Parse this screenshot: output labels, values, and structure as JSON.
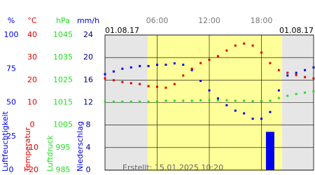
{
  "chart_data": {
    "type": "line",
    "dates": [
      "01.08.17",
      "01.08.17"
    ],
    "footer": "Erstellt: 15.01.2025 10:20",
    "x": [
      0,
      1,
      2,
      3,
      4,
      5,
      6,
      7,
      8,
      9,
      10,
      11,
      12,
      13,
      14,
      15,
      16,
      17,
      18,
      19,
      20,
      21,
      22,
      23,
      24
    ],
    "xlim": [
      0,
      24
    ],
    "xticks": [
      {
        "value": 6,
        "label": "06:00"
      },
      {
        "value": 12,
        "label": "12:00"
      },
      {
        "value": 18,
        "label": "18:00"
      }
    ],
    "grid": true,
    "series": [
      {
        "name": "Luftfeuchtigkeit",
        "unit": "%",
        "color": "#0000ee",
        "style": "dots",
        "ylim": [
          0,
          100
        ],
        "yticks": [
          100,
          75,
          50,
          25,
          0
        ],
        "values": [
          71,
          73,
          75,
          76,
          77,
          77,
          78,
          78,
          79,
          78,
          74,
          66,
          59,
          53,
          48,
          44,
          42,
          38,
          38,
          43,
          59,
          70,
          72,
          74,
          76
        ]
      },
      {
        "name": "Temperatur",
        "unit": "°C",
        "color": "#dd0000",
        "style": "dots",
        "ylim": [
          -20,
          40
        ],
        "yticks": [
          40,
          30,
          20,
          10,
          0,
          -10,
          -20
        ],
        "values": [
          20.7,
          19.9,
          19.1,
          18.6,
          18.2,
          17.3,
          17,
          16.6,
          18.2,
          22,
          25,
          27.5,
          29,
          30.6,
          33.1,
          35.3,
          36.2,
          35.3,
          32.2,
          27.5,
          24.4,
          23.2,
          22.2,
          21.3,
          20.7
        ]
      },
      {
        "name": "Luftdruck",
        "unit": "hPa",
        "color": "#22dd22",
        "style": "dots",
        "ylim": [
          985,
          1045
        ],
        "yticks": [
          1045,
          1035,
          1025,
          1015,
          1005,
          995,
          985
        ],
        "values": [
          1015.4,
          1015.4,
          1015.4,
          1015.4,
          1015.4,
          1015.4,
          1015.4,
          1015.8,
          1015.8,
          1015.8,
          1015.8,
          1016,
          1016,
          1016,
          1016,
          1015.8,
          1015.8,
          1015.6,
          1015.6,
          1015.8,
          1017,
          1018,
          1018.8,
          1019.4,
          1020
        ]
      },
      {
        "name": "Niederschlag",
        "unit": "mm/h",
        "color": "#0000ee",
        "label_color": "#000080",
        "style": "bars",
        "ylim": [
          0,
          24
        ],
        "yticks": [
          24,
          20,
          16,
          12,
          8,
          4,
          0
        ],
        "values": [
          0,
          0,
          0,
          0,
          0,
          0,
          0,
          0,
          0,
          0,
          0,
          0,
          0,
          0,
          0,
          0,
          0,
          0,
          0,
          6.8,
          0,
          0,
          0,
          0,
          0
        ]
      }
    ]
  }
}
